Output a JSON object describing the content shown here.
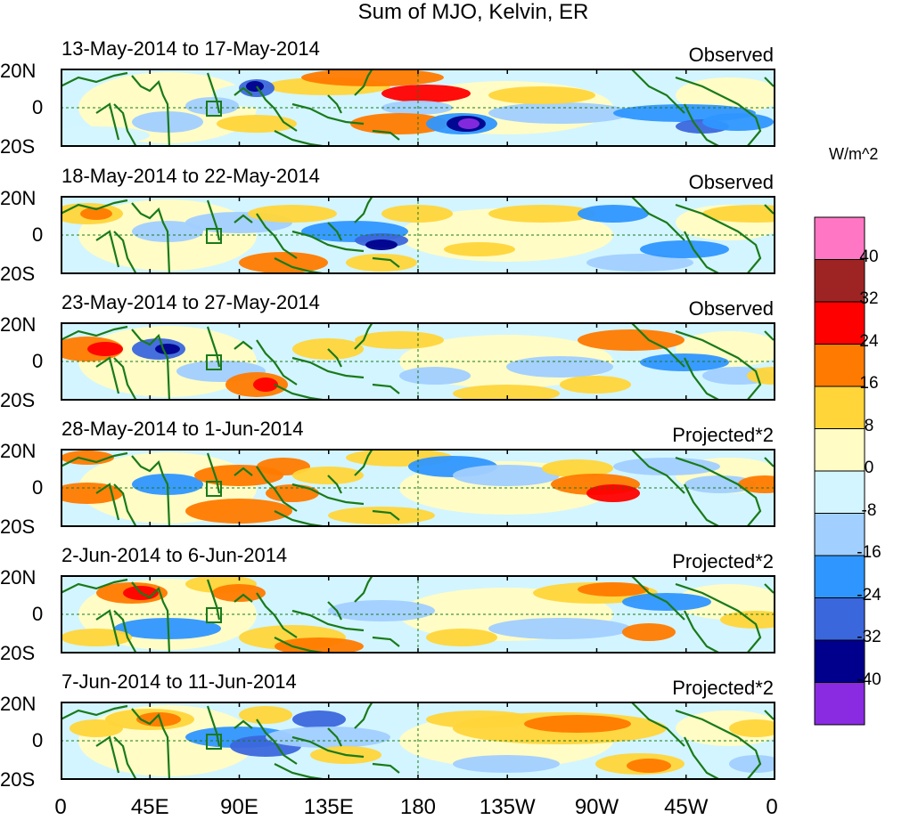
{
  "title": "Sum of MJO, Kelvin, ER",
  "panels": [
    {
      "date_range": "13-May-2014 to 17-May-2014",
      "status": "Observed"
    },
    {
      "date_range": "18-May-2014 to 22-May-2014",
      "status": "Observed"
    },
    {
      "date_range": "23-May-2014 to 27-May-2014",
      "status": "Observed"
    },
    {
      "date_range": "28-May-2014 to 1-Jun-2014",
      "status": "Projected*2"
    },
    {
      "date_range": "2-Jun-2014 to 6-Jun-2014",
      "status": "Projected*2"
    },
    {
      "date_range": "7-Jun-2014 to 11-Jun-2014",
      "status": "Projected*2"
    }
  ],
  "lat_labels": [
    "20N",
    "0",
    "20S"
  ],
  "lon_labels": [
    "0",
    "45E",
    "90E",
    "135E",
    "180",
    "135W",
    "90W",
    "45W",
    "0"
  ],
  "colorbar": {
    "unit": "W/m^2",
    "labels": [
      "40",
      "32",
      "24",
      "16",
      "8",
      "0",
      "-8",
      "-16",
      "-24",
      "-32",
      "-40"
    ],
    "colors": [
      "#ff77c4",
      "#9e2424",
      "#ff0000",
      "#ff7a00",
      "#ffd53a",
      "#fffcc6",
      "#d3f5ff",
      "#a1cfff",
      "#2f96ff",
      "#3b67dd",
      "#00008c",
      "#8a2be2"
    ]
  },
  "land_color": "#1a7a1a"
}
